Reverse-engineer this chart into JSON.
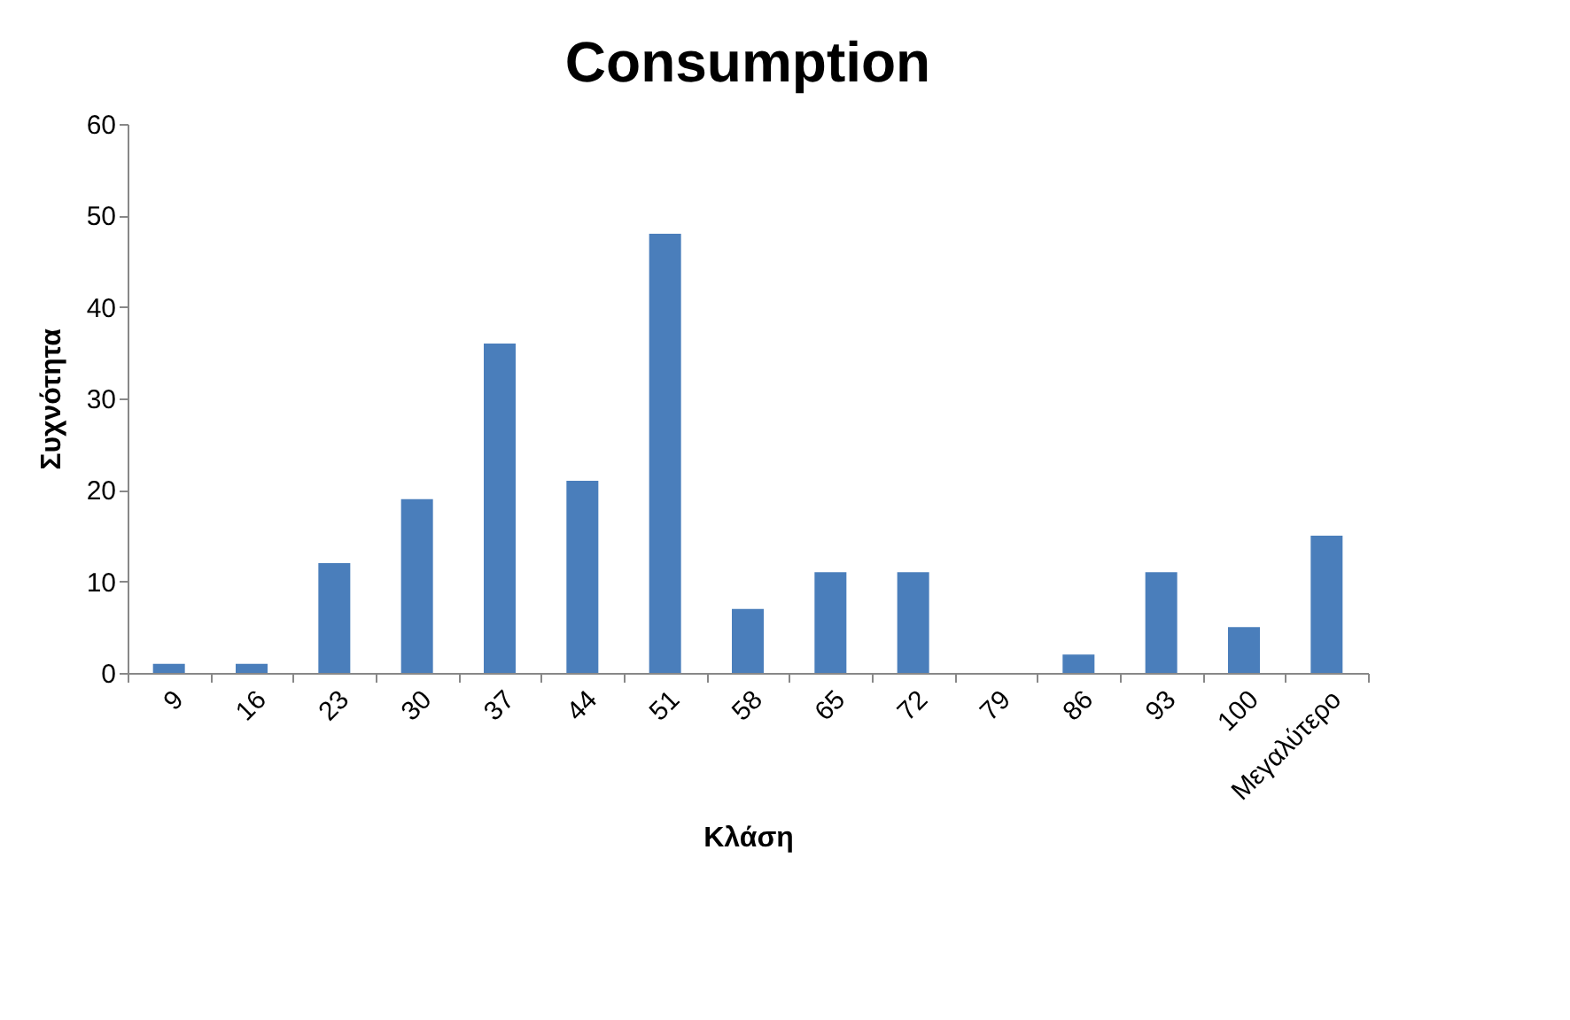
{
  "chart_data": {
    "type": "bar",
    "title": "Consumption",
    "xlabel": "Κλάση",
    "ylabel": "Συχνότητα",
    "categories": [
      "9",
      "16",
      "23",
      "30",
      "37",
      "44",
      "51",
      "58",
      "65",
      "72",
      "79",
      "86",
      "93",
      "100",
      "Μεγαλύτερο"
    ],
    "values": [
      1,
      1,
      12,
      19,
      36,
      21,
      48,
      7,
      11,
      11,
      0,
      2,
      11,
      5,
      15
    ],
    "color": "#4a7ebb",
    "ylim": [
      0,
      60
    ],
    "yticks": [
      0,
      10,
      20,
      30,
      40,
      50,
      60
    ],
    "grid": false
  }
}
